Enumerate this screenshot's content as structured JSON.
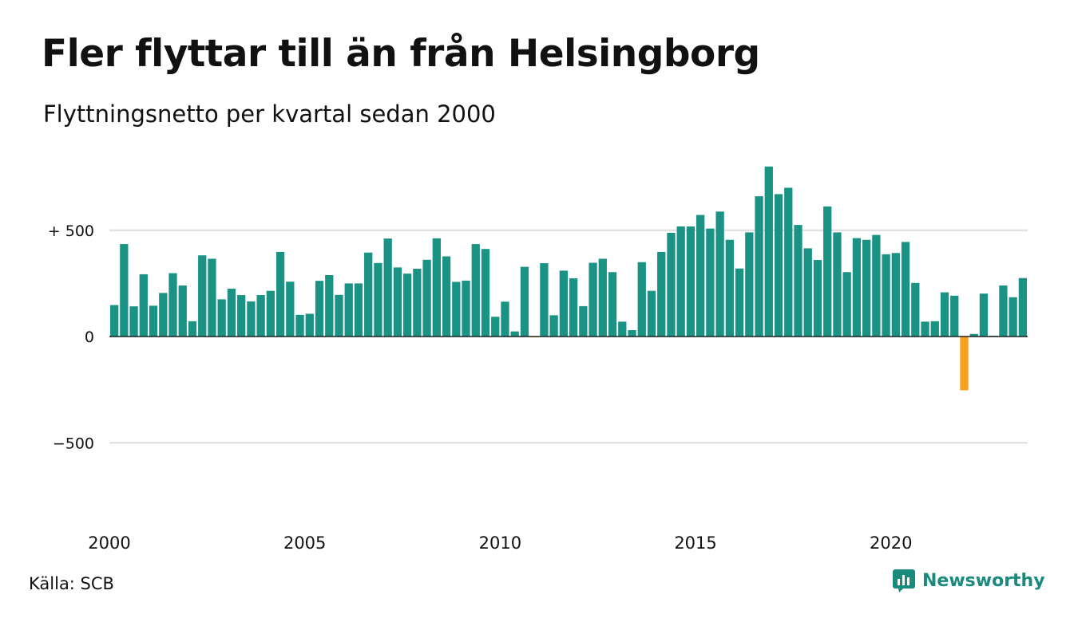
{
  "title": "Fler flyttar till än från Helsingborg",
  "subtitle": "Flyttningsnetto per kvartal sedan 2000",
  "source": "Källa: SCB",
  "brand": "Newsworthy",
  "colors": {
    "positive": "#1a9385",
    "negative": "#f5a11f",
    "grid": "#dcdcdc",
    "zero_line": "#222222",
    "brand": "#1a8a7d"
  },
  "chart_data": {
    "type": "bar",
    "x_ticks": [
      {
        "label": "2000",
        "index": 0
      },
      {
        "label": "2005",
        "index": 20
      },
      {
        "label": "2010",
        "index": 40
      },
      {
        "label": "2015",
        "index": 60
      },
      {
        "label": "2020",
        "index": 80
      }
    ],
    "y_ticks": [
      {
        "label": "+ 500",
        "value": 500
      },
      {
        "label": "0",
        "value": 0
      },
      {
        "label": "−500",
        "value": -500
      }
    ],
    "ylim": [
      -650,
      800
    ],
    "grid": true,
    "first_quarter": "2000 Q1",
    "values": [
      148,
      435,
      142,
      293,
      145,
      205,
      298,
      240,
      72,
      382,
      366,
      175,
      225,
      195,
      165,
      195,
      215,
      398,
      258,
      102,
      107,
      262,
      289,
      196,
      250,
      250,
      395,
      346,
      461,
      325,
      296,
      319,
      361,
      462,
      377,
      257,
      263,
      435,
      412,
      93,
      164,
      24,
      328,
      -4,
      345,
      100,
      310,
      274,
      143,
      347,
      366,
      303,
      70,
      30,
      350,
      215,
      398,
      488,
      518,
      518,
      572,
      508,
      588,
      455,
      320,
      490,
      660,
      800,
      670,
      700,
      525,
      415,
      360,
      612,
      490,
      303,
      463,
      455,
      478,
      387,
      393,
      445,
      252,
      70,
      72,
      208,
      192,
      -253,
      12,
      202,
      4,
      240,
      185,
      275
    ]
  }
}
